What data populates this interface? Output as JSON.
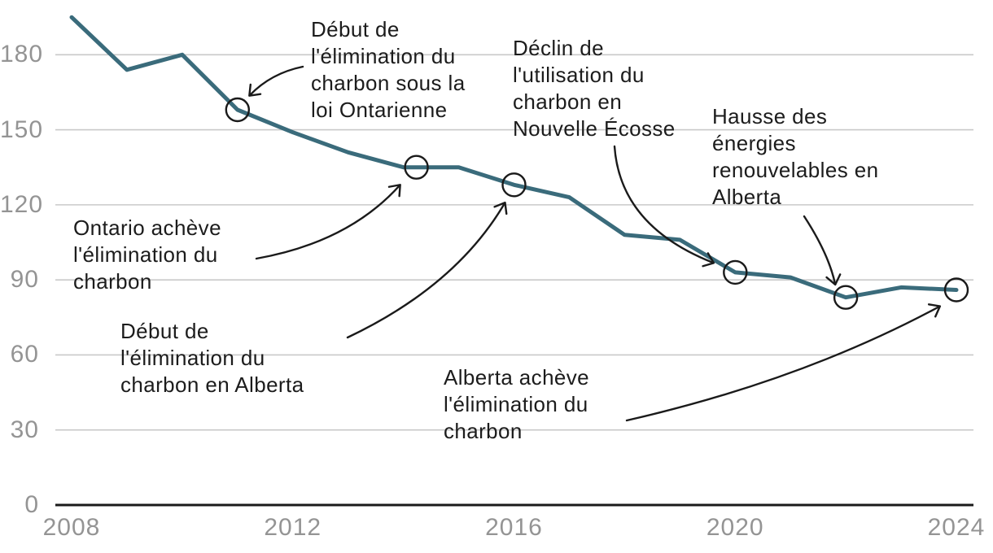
{
  "chart_data": {
    "type": "line",
    "title": "",
    "xlabel": "",
    "ylabel": "",
    "x": [
      2008,
      2009,
      2010,
      2011,
      2012,
      2013,
      2014,
      2015,
      2016,
      2017,
      2018,
      2019,
      2020,
      2021,
      2022,
      2023,
      2024
    ],
    "values": [
      195,
      174,
      180,
      158,
      149,
      141,
      135,
      135,
      128,
      123,
      108,
      106,
      93,
      91,
      83,
      87,
      86
    ],
    "xticks": [
      "2008",
      "2012",
      "2016",
      "2020",
      "2024"
    ],
    "yticks": [
      "0",
      "30",
      "60",
      "90",
      "120",
      "150",
      "180"
    ],
    "ylim": [
      0,
      200
    ],
    "grid": "horizontal",
    "legend": "none",
    "colors": {
      "line": "#3a6b7b",
      "grid": "#c9c9c9",
      "axis_line": "#1a1a1a",
      "tick_labels": "#949494",
      "annotation_ink": "#1a1a1a"
    },
    "annotated_points": [
      {
        "year": 2011,
        "value": 158,
        "label": "Début de l'élimination du charbon sous la loi Ontarienne",
        "label_lines": [
          "Début de",
          "l'élimination du",
          "charbon sous la",
          "loi Ontarienne"
        ]
      },
      {
        "year": 2014,
        "value": 135,
        "label": "Ontario achève l'élimination du charbon",
        "label_lines": [
          "Ontario achève",
          "l'élimination du",
          "charbon"
        ]
      },
      {
        "year": 2016,
        "value": 128,
        "label": "Début de l'élimination du charbon en Alberta",
        "label_lines": [
          "Début de",
          "l'élimination du",
          "charbon en Alberta"
        ]
      },
      {
        "year": 2020,
        "value": 93,
        "label": "Déclin de l'utilisation du charbon en Nouvelle Écosse",
        "label_lines": [
          "Déclin de",
          "l'utilisation du",
          "charbon en",
          "Nouvelle Écosse"
        ]
      },
      {
        "year": 2022,
        "value": 83,
        "label": "Hausse des énergies renouvelables en Alberta",
        "label_lines": [
          "Hausse des",
          "énergies",
          "renouvelables en",
          "Alberta"
        ]
      },
      {
        "year": 2024,
        "value": 86,
        "label": "Alberta achève l'élimination du charbon",
        "label_lines": [
          "Alberta achève",
          "l'élimination du",
          "charbon"
        ]
      }
    ]
  }
}
